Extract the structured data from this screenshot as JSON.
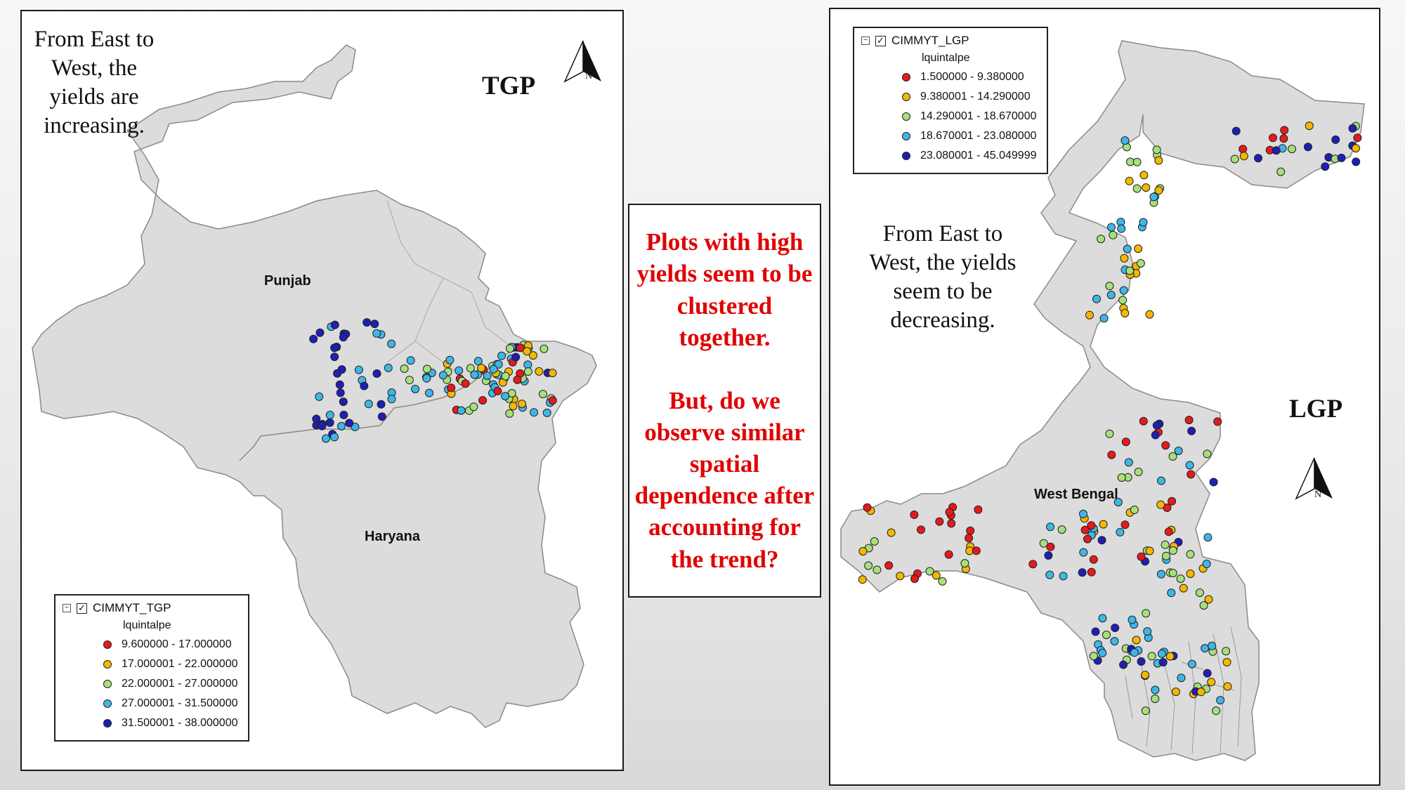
{
  "left_map": {
    "annotation": "From East to West, the yields are increasing.",
    "region_tag": "TGP",
    "places": [
      "Punjab",
      "Haryana"
    ],
    "north_label": "N",
    "legend": {
      "layer": "CIMMYT_TGP",
      "field": "lquintalpe",
      "checked": "✓",
      "collapse": "−",
      "classes": [
        {
          "label": "9.600000 - 17.000000",
          "color": "#e41a1c"
        },
        {
          "label": "17.000001 - 22.000000",
          "color": "#f5b800"
        },
        {
          "label": "22.000001 - 27.000000",
          "color": "#a6e07a"
        },
        {
          "label": "27.000001 - 31.500000",
          "color": "#3fb6e6"
        },
        {
          "label": "31.500001 - 38.000000",
          "color": "#1f1fb4"
        }
      ]
    }
  },
  "center_box": {
    "text": "Plots with high yields seem to be clustered together.\n\nBut, do we observe similar spatial dependence after accounting for the trend?"
  },
  "right_map": {
    "annotation": "From East to West, the yields seem to be decreasing.",
    "region_tag": "LGP",
    "places": [
      "West Bengal"
    ],
    "north_label": "N",
    "legend": {
      "layer": "CIMMYT_LGP",
      "field": "lquintalpe",
      "checked": "✓",
      "collapse": "−",
      "classes": [
        {
          "label": "1.500000 - 9.380000",
          "color": "#e41a1c"
        },
        {
          "label": "9.380001 - 14.290000",
          "color": "#f5b800"
        },
        {
          "label": "14.290001 - 18.670000",
          "color": "#a6e07a"
        },
        {
          "label": "18.670001 - 23.080000",
          "color": "#3fb6e6"
        },
        {
          "label": "23.080001 - 45.049999",
          "color": "#1f1fb4"
        }
      ]
    }
  }
}
